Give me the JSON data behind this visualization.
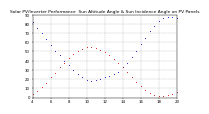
{
  "title": "Solar PV/Inverter Performance  Sun Altitude Angle & Sun Incidence Angle on PV Panels",
  "xlim": [
    4,
    20
  ],
  "ylim": [
    0,
    90
  ],
  "blue_x": [
    4.0,
    4.5,
    5.0,
    5.5,
    6.0,
    6.5,
    7.0,
    7.5,
    8.0,
    8.5,
    9.0,
    9.5,
    10.0,
    10.5,
    11.0,
    11.5,
    12.0,
    12.5,
    13.0,
    13.5,
    14.0,
    14.5,
    15.0,
    15.5,
    16.0,
    16.5,
    17.0,
    17.5,
    18.0,
    18.5,
    19.0,
    19.5,
    20.0
  ],
  "blue_y": [
    82,
    76,
    70,
    63,
    57,
    51,
    46,
    40,
    35,
    30,
    25,
    22,
    19,
    18,
    19,
    20,
    22,
    23,
    25,
    28,
    33,
    38,
    44,
    51,
    58,
    65,
    72,
    78,
    83,
    86,
    87,
    87,
    86
  ],
  "red_x": [
    4.0,
    4.5,
    5.0,
    5.5,
    6.0,
    6.5,
    7.0,
    7.5,
    8.0,
    8.5,
    9.0,
    9.5,
    10.0,
    10.5,
    11.0,
    11.5,
    12.0,
    12.5,
    13.0,
    13.5,
    14.0,
    14.5,
    15.0,
    15.5,
    16.0,
    16.5,
    17.0,
    17.5,
    18.0,
    18.5,
    19.0,
    19.5,
    20.0
  ],
  "red_y": [
    4,
    7,
    11,
    16,
    22,
    27,
    33,
    38,
    43,
    47,
    51,
    53,
    55,
    55,
    54,
    52,
    49,
    46,
    42,
    38,
    33,
    28,
    22,
    17,
    12,
    8,
    5,
    3,
    2,
    2,
    3,
    4,
    6
  ],
  "blue_color": "#0000cc",
  "red_color": "#cc0000",
  "bg_color": "#ffffff",
  "grid_color": "#888888",
  "xticks": [
    4,
    6,
    8,
    10,
    12,
    14,
    16,
    18,
    20
  ],
  "yticks": [
    0,
    10,
    20,
    30,
    40,
    50,
    60,
    70,
    80,
    90
  ],
  "title_fontsize": 3.2,
  "tick_fontsize": 2.8
}
